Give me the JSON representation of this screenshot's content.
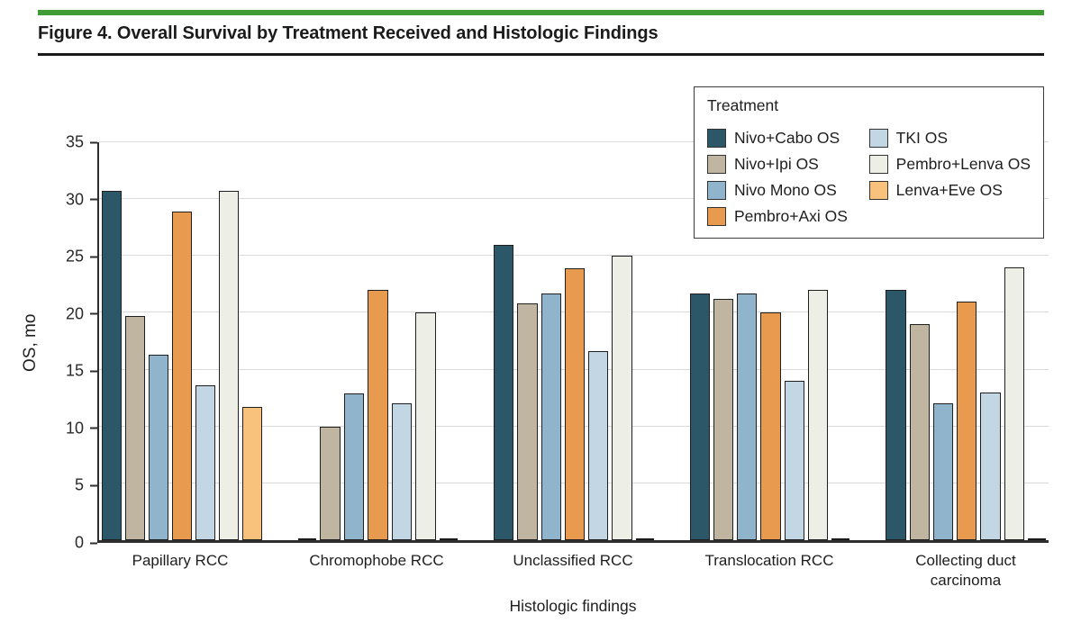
{
  "figure": {
    "title": "Figure 4. Overall Survival by Treatment Received and Histologic Findings",
    "accent_color": "#3F9C35"
  },
  "chart_data": {
    "type": "bar",
    "title": "Overall Survival by Treatment Received and Histologic Findings",
    "xlabel": "Histologic findings",
    "ylabel": "OS, mo",
    "ylim": [
      0,
      35
    ],
    "yticks": [
      0,
      5,
      10,
      15,
      20,
      25,
      30,
      35
    ],
    "grid": true,
    "legend_title": "Treatment",
    "legend_position": "top-right",
    "legend_columns": [
      4,
      3
    ],
    "bar_border_color": "#1f1f1f",
    "gridline_color": "#d9d9d9",
    "categories": [
      "Papillary RCC",
      "Chromophobe RCC",
      "Unclassified RCC",
      "Translocation RCC",
      "Collecting duct carcinoma"
    ],
    "series": [
      {
        "name": "Nivo+Cabo OS",
        "color": "#2C5769",
        "values": [
          30.7,
          0,
          26.0,
          21.7,
          22.0
        ]
      },
      {
        "name": "Nivo+Ipi OS",
        "color": "#BFB5A0",
        "values": [
          19.7,
          10.0,
          20.8,
          21.2,
          19.0
        ]
      },
      {
        "name": "Nivo Mono OS",
        "color": "#8FB4CB",
        "values": [
          16.3,
          12.9,
          21.7,
          21.7,
          12.0
        ]
      },
      {
        "name": "Pembro+Axi OS",
        "color": "#E89B4E",
        "values": [
          28.9,
          22.0,
          23.9,
          20.0,
          21.0
        ]
      },
      {
        "name": "TKI OS",
        "color": "#C2D6E3",
        "values": [
          13.6,
          12.0,
          16.6,
          14.0,
          13.0
        ]
      },
      {
        "name": "Pembro+Lenva OS",
        "color": "#EDEEE5",
        "values": [
          30.7,
          20.0,
          25.0,
          22.0,
          24.0
        ]
      },
      {
        "name": "Lenva+Eve OS",
        "color": "#F8C27D",
        "values": [
          11.7,
          0,
          0,
          0,
          0
        ]
      }
    ]
  }
}
